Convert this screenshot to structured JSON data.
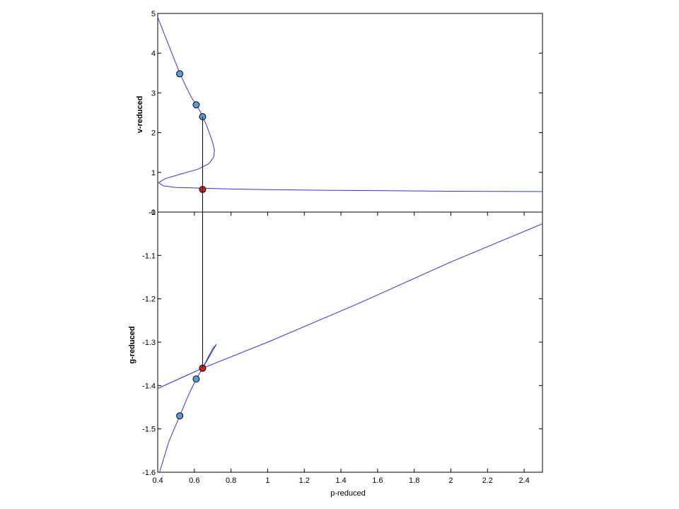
{
  "chart_data": [
    {
      "type": "line",
      "panel": "top",
      "ylabel": "v-reduced",
      "xlabel": "",
      "xlim": [
        0.4,
        2.5
      ],
      "ylim": [
        0,
        5
      ],
      "yticks": [
        0,
        1,
        2,
        3,
        4,
        5
      ],
      "ytick_labels": [
        "-0",
        "1",
        "2",
        "3",
        "4",
        "5"
      ],
      "grid": false,
      "series": [
        {
          "color": "#3333dd",
          "points": [
            [
              0.4,
              4.9
            ],
            [
              0.43,
              4.55
            ],
            [
              0.46,
              4.2
            ],
            [
              0.49,
              3.85
            ],
            [
              0.52,
              3.5
            ],
            [
              0.555,
              3.15
            ],
            [
              0.585,
              2.88
            ],
            [
              0.61,
              2.7
            ],
            [
              0.63,
              2.55
            ],
            [
              0.645,
              2.4
            ],
            [
              0.665,
              2.2
            ],
            [
              0.685,
              1.95
            ],
            [
              0.7,
              1.75
            ],
            [
              0.71,
              1.55
            ],
            [
              0.705,
              1.38
            ],
            [
              0.68,
              1.22
            ],
            [
              0.62,
              1.08
            ],
            [
              0.52,
              0.95
            ],
            [
              0.44,
              0.84
            ],
            [
              0.405,
              0.74
            ],
            [
              0.43,
              0.66
            ],
            [
              0.5,
              0.62
            ],
            [
              0.645,
              0.6
            ],
            [
              0.8,
              0.58
            ],
            [
              1.0,
              0.565
            ],
            [
              1.3,
              0.55
            ],
            [
              1.6,
              0.54
            ],
            [
              2.0,
              0.525
            ],
            [
              2.5,
              0.515
            ]
          ]
        }
      ],
      "markers": [
        {
          "x": 0.52,
          "y": 3.48,
          "color": "#5b9bd5"
        },
        {
          "x": 0.61,
          "y": 2.7,
          "color": "#5b9bd5"
        },
        {
          "x": 0.645,
          "y": 2.4,
          "color": "#5b9bd5"
        },
        {
          "x": 0.645,
          "y": 0.57,
          "color": "#d62020"
        }
      ]
    },
    {
      "type": "line",
      "panel": "bottom",
      "ylabel": "g-reduced",
      "xlabel": "p-reduced",
      "xlim": [
        0.4,
        2.5
      ],
      "ylim": [
        -1.6,
        -1.0
      ],
      "yticks": [
        -1.6,
        -1.5,
        -1.4,
        -1.3,
        -1.2,
        -1.1,
        -1.0
      ],
      "ytick_labels": [
        "-1.6",
        "-1.5",
        "-1.4",
        "-1.3",
        "-1.2",
        "-1.1",
        "-1"
      ],
      "xticks": [
        0.4,
        0.6,
        0.8,
        1.0,
        1.2,
        1.4,
        1.6,
        1.8,
        2.0,
        2.2,
        2.4
      ],
      "xtick_labels": [
        "0.4",
        "0.6",
        "0.8",
        "1",
        "1.2",
        "1.4",
        "1.6",
        "1.8",
        "2",
        "2.2",
        "2.4"
      ],
      "grid": false,
      "series": [
        {
          "color": "#3333dd",
          "points": [
            [
              0.41,
              -1.6
            ],
            [
              0.46,
              -1.53
            ],
            [
              0.52,
              -1.47
            ],
            [
              0.57,
              -1.42
            ],
            [
              0.61,
              -1.385
            ],
            [
              0.645,
              -1.36
            ],
            [
              0.675,
              -1.335
            ],
            [
              0.7,
              -1.315
            ],
            [
              0.72,
              -1.305
            ],
            [
              0.645,
              -1.36
            ],
            [
              0.55,
              -1.378
            ],
            [
              0.4,
              -1.407
            ],
            [
              0.645,
              -1.36
            ],
            [
              1.0,
              -1.3
            ],
            [
              1.5,
              -1.21
            ],
            [
              2.0,
              -1.115
            ],
            [
              2.5,
              -1.027
            ]
          ]
        }
      ],
      "markers": [
        {
          "x": 0.52,
          "y": -1.47,
          "color": "#5b9bd5"
        },
        {
          "x": 0.61,
          "y": -1.385,
          "color": "#5b9bd5"
        },
        {
          "x": 0.645,
          "y": -1.36,
          "color": "#d62020"
        }
      ]
    }
  ],
  "connector": {
    "x": 0.645,
    "color": "#000000"
  }
}
